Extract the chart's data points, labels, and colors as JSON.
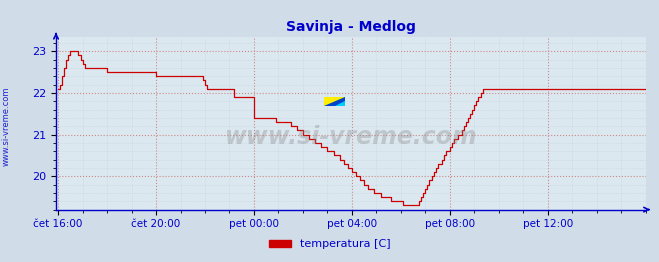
{
  "title": "Savinja - Medlog",
  "title_color": "#0000cc",
  "bg_color": "#d0dce8",
  "plot_bg_color": "#dce8f0",
  "line_color": "#cc0000",
  "axis_color": "#0000cc",
  "grid_color_major": "#cc8888",
  "grid_color_minor": "#bbccdd",
  "ylabel_left": "www.si-vreme.com",
  "legend_label": "temperatura [C]",
  "legend_color": "#cc0000",
  "ylim": [
    19.2,
    23.35
  ],
  "yticks": [
    20,
    21,
    22,
    23
  ],
  "watermark": "www.si-vreme.com",
  "xtick_labels": [
    "čet 16:00",
    "čet 20:00",
    "pet 00:00",
    "pet 04:00",
    "pet 08:00",
    "pet 12:00"
  ],
  "figsize": [
    6.59,
    2.62
  ],
  "dpi": 100,
  "n_points": 289,
  "xtick_positions": [
    0,
    48,
    96,
    144,
    192,
    240
  ],
  "temperature_data": [
    22.1,
    22.2,
    22.4,
    22.6,
    22.8,
    22.9,
    23.0,
    23.0,
    23.0,
    23.0,
    22.9,
    22.8,
    22.7,
    22.6,
    22.6,
    22.6,
    22.6,
    22.6,
    22.6,
    22.6,
    22.6,
    22.6,
    22.6,
    22.6,
    22.5,
    22.5,
    22.5,
    22.5,
    22.5,
    22.5,
    22.5,
    22.5,
    22.5,
    22.5,
    22.5,
    22.5,
    22.5,
    22.5,
    22.5,
    22.5,
    22.5,
    22.5,
    22.5,
    22.5,
    22.5,
    22.5,
    22.5,
    22.5,
    22.4,
    22.4,
    22.4,
    22.4,
    22.4,
    22.4,
    22.4,
    22.4,
    22.4,
    22.4,
    22.4,
    22.4,
    22.4,
    22.4,
    22.4,
    22.4,
    22.4,
    22.4,
    22.4,
    22.4,
    22.4,
    22.4,
    22.4,
    22.3,
    22.2,
    22.1,
    22.1,
    22.1,
    22.1,
    22.1,
    22.1,
    22.1,
    22.1,
    22.1,
    22.1,
    22.1,
    22.1,
    22.1,
    21.9,
    21.9,
    21.9,
    21.9,
    21.9,
    21.9,
    21.9,
    21.9,
    21.9,
    21.9,
    21.4,
    21.4,
    21.4,
    21.4,
    21.4,
    21.4,
    21.4,
    21.4,
    21.4,
    21.4,
    21.4,
    21.3,
    21.3,
    21.3,
    21.3,
    21.3,
    21.3,
    21.3,
    21.2,
    21.2,
    21.2,
    21.1,
    21.1,
    21.1,
    21.0,
    21.0,
    21.0,
    20.9,
    20.9,
    20.9,
    20.8,
    20.8,
    20.8,
    20.7,
    20.7,
    20.7,
    20.6,
    20.6,
    20.6,
    20.5,
    20.5,
    20.5,
    20.4,
    20.4,
    20.3,
    20.3,
    20.2,
    20.2,
    20.1,
    20.1,
    20.0,
    20.0,
    19.9,
    19.9,
    19.8,
    19.8,
    19.7,
    19.7,
    19.7,
    19.6,
    19.6,
    19.6,
    19.5,
    19.5,
    19.5,
    19.5,
    19.5,
    19.4,
    19.4,
    19.4,
    19.4,
    19.4,
    19.4,
    19.3,
    19.3,
    19.3,
    19.3,
    19.3,
    19.3,
    19.3,
    19.3,
    19.4,
    19.5,
    19.6,
    19.7,
    19.8,
    19.9,
    20.0,
    20.1,
    20.2,
    20.3,
    20.3,
    20.4,
    20.5,
    20.6,
    20.6,
    20.7,
    20.8,
    20.9,
    20.9,
    21.0,
    21.0,
    21.1,
    21.2,
    21.3,
    21.4,
    21.5,
    21.6,
    21.7,
    21.8,
    21.9,
    22.0,
    22.1,
    22.1,
    22.1,
    22.1,
    22.1,
    22.1,
    22.1,
    22.1,
    22.1,
    22.1,
    22.1,
    22.1,
    22.1,
    22.1,
    22.1,
    22.1,
    22.1,
    22.1,
    22.1,
    22.1,
    22.1,
    22.1,
    22.1,
    22.1,
    22.1,
    22.1,
    22.1,
    22.1,
    22.1,
    22.1,
    22.1,
    22.1,
    22.1,
    22.1,
    22.1,
    22.1,
    22.1,
    22.1,
    22.1,
    22.1,
    22.1,
    22.1,
    22.1,
    22.1,
    22.1,
    22.1,
    22.1,
    22.1,
    22.1,
    22.1,
    22.1,
    22.1,
    22.1,
    22.1,
    22.1,
    22.1,
    22.1,
    22.1,
    22.1,
    22.1,
    22.1,
    22.1,
    22.1,
    22.1,
    22.1,
    22.1,
    22.1,
    22.1,
    22.1,
    22.1,
    22.1,
    22.1,
    22.1,
    22.1,
    22.1,
    22.1,
    22.1,
    22.1,
    22.1,
    22.1,
    22.1
  ]
}
